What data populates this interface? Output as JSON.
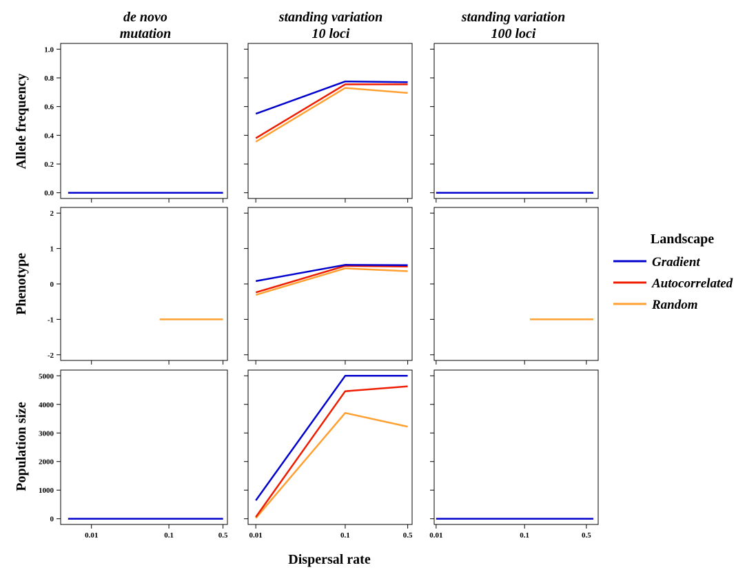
{
  "figure": {
    "xlabel": "Dispersal rate",
    "columns": [
      {
        "line1": "de novo",
        "line2": "mutation"
      },
      {
        "line1": "standing variation",
        "line2": "10 loci"
      },
      {
        "line1": "standing variation",
        "line2": "100 loci"
      }
    ],
    "rows": [
      {
        "label": "Allele frequency"
      },
      {
        "label": "Phenotype"
      },
      {
        "label": "Population size"
      }
    ],
    "legend": {
      "title": "Landscape",
      "entries": [
        {
          "label": "Gradient",
          "color": "#0000cc"
        },
        {
          "label": "Autocorrelated",
          "color": "#ee1c00"
        },
        {
          "label": "Random",
          "color": "#ffa030"
        }
      ]
    }
  },
  "chart_data": {
    "type": "line",
    "x_ticks": [
      "0.01",
      "0.1",
      "0.5"
    ],
    "colors": {
      "Gradient": "#0000cc",
      "Autocorrelated": "#ee1c00",
      "Random": "#ffa030"
    },
    "rows": [
      {
        "ylabel": "Allele frequency",
        "ylim": [
          0,
          1
        ],
        "yticks": [
          "0.0",
          "0.2",
          "0.4",
          "0.6",
          "0.8",
          "1.0"
        ],
        "yvals": [
          0,
          0.2,
          0.4,
          0.6,
          0.8,
          1.0
        ]
      },
      {
        "ylabel": "Phenotype",
        "ylim": [
          -2,
          2
        ],
        "yticks": [
          "-2",
          "-1",
          "0",
          "1",
          "2"
        ],
        "yvals": [
          -2,
          -1,
          0,
          1,
          2
        ]
      },
      {
        "ylabel": "Population size",
        "ylim": [
          0,
          5000
        ],
        "yticks": [
          "0",
          "1000",
          "2000",
          "3000",
          "4000",
          "5000"
        ],
        "yvals": [
          0,
          1000,
          2000,
          3000,
          4000,
          5000
        ]
      }
    ],
    "panels": [
      {
        "row": 0,
        "col": 0,
        "series": [
          {
            "name": "Gradient",
            "x": [
              0.005,
              0.5
            ],
            "y": [
              0,
              0
            ]
          },
          {
            "name": "Autocorrelated",
            "x": [
              0.005,
              0.5
            ],
            "y": [
              0,
              0
            ]
          },
          {
            "name": "Random",
            "x": [
              0.005,
              0.5
            ],
            "y": [
              0,
              0
            ]
          }
        ]
      },
      {
        "row": 0,
        "col": 1,
        "series": [
          {
            "name": "Gradient",
            "x": [
              0.01,
              0.1,
              0.5
            ],
            "y": [
              0.55,
              0.775,
              0.77
            ]
          },
          {
            "name": "Autocorrelated",
            "x": [
              0.01,
              0.1,
              0.5
            ],
            "y": [
              0.38,
              0.755,
              0.755
            ]
          },
          {
            "name": "Random",
            "x": [
              0.01,
              0.1,
              0.5
            ],
            "y": [
              0.355,
              0.73,
              0.695
            ]
          }
        ]
      },
      {
        "row": 0,
        "col": 2,
        "series": [
          {
            "name": "Gradient",
            "x": [
              0.01,
              0.6
            ],
            "y": [
              0,
              0
            ]
          },
          {
            "name": "Autocorrelated",
            "x": [
              0.01,
              0.6
            ],
            "y": [
              0,
              0
            ]
          },
          {
            "name": "Random",
            "x": [
              0.01,
              0.6
            ],
            "y": [
              0,
              0
            ]
          }
        ]
      },
      {
        "row": 1,
        "col": 0,
        "series": [
          {
            "name": "Random",
            "x": [
              0.076,
              0.5
            ],
            "y": [
              -1,
              -1
            ]
          }
        ]
      },
      {
        "row": 1,
        "col": 1,
        "series": [
          {
            "name": "Gradient",
            "x": [
              0.01,
              0.1,
              0.5
            ],
            "y": [
              0.08,
              0.54,
              0.53
            ]
          },
          {
            "name": "Autocorrelated",
            "x": [
              0.01,
              0.1,
              0.5
            ],
            "y": [
              -0.24,
              0.51,
              0.49
            ]
          },
          {
            "name": "Random",
            "x": [
              0.01,
              0.1,
              0.5
            ],
            "y": [
              -0.31,
              0.44,
              0.36
            ]
          }
        ]
      },
      {
        "row": 1,
        "col": 2,
        "series": [
          {
            "name": "Random",
            "x": [
              0.115,
              0.6
            ],
            "y": [
              -1,
              -1
            ]
          }
        ]
      },
      {
        "row": 2,
        "col": 0,
        "series": [
          {
            "name": "Gradient",
            "x": [
              0.005,
              0.5
            ],
            "y": [
              0,
              0
            ]
          },
          {
            "name": "Autocorrelated",
            "x": [
              0.005,
              0.5
            ],
            "y": [
              0,
              0
            ]
          },
          {
            "name": "Random",
            "x": [
              0.005,
              0.5
            ],
            "y": [
              0,
              0
            ]
          }
        ]
      },
      {
        "row": 2,
        "col": 1,
        "series": [
          {
            "name": "Gradient",
            "x": [
              0.01,
              0.1,
              0.5
            ],
            "y": [
              640,
              5000,
              5000
            ]
          },
          {
            "name": "Autocorrelated",
            "x": [
              0.01,
              0.1,
              0.5
            ],
            "y": [
              60,
              4460,
              4630
            ]
          },
          {
            "name": "Random",
            "x": [
              0.01,
              0.1,
              0.5
            ],
            "y": [
              20,
              3700,
              3220
            ]
          }
        ]
      },
      {
        "row": 2,
        "col": 2,
        "series": [
          {
            "name": "Gradient",
            "x": [
              0.01,
              0.6
            ],
            "y": [
              0,
              0
            ]
          },
          {
            "name": "Autocorrelated",
            "x": [
              0.01,
              0.6
            ],
            "y": [
              0,
              0
            ]
          },
          {
            "name": "Random",
            "x": [
              0.01,
              0.6
            ],
            "y": [
              0,
              0
            ]
          }
        ]
      }
    ]
  }
}
